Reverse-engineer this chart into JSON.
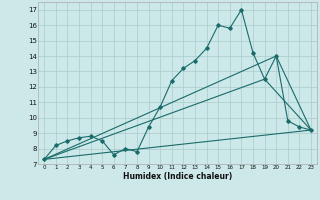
{
  "xlabel": "Humidex (Indice chaleur)",
  "background_color": "#cce8e8",
  "grid_color": "#aacccc",
  "line_color": "#1a6b6b",
  "xlim": [
    -0.5,
    23.5
  ],
  "ylim": [
    7,
    17.5
  ],
  "xticks": [
    0,
    1,
    2,
    3,
    4,
    5,
    6,
    7,
    8,
    9,
    10,
    11,
    12,
    13,
    14,
    15,
    16,
    17,
    18,
    19,
    20,
    21,
    22,
    23
  ],
  "yticks": [
    7,
    8,
    9,
    10,
    11,
    12,
    13,
    14,
    15,
    16,
    17
  ],
  "series1_y": [
    7.3,
    8.2,
    8.5,
    8.7,
    8.8,
    8.5,
    7.6,
    8.0,
    7.8,
    9.4,
    10.7,
    12.4,
    13.2,
    13.7,
    14.5,
    16.0,
    15.8,
    17.0,
    14.2,
    12.5,
    14.0,
    9.8,
    9.4,
    9.2
  ],
  "series2_x": [
    0,
    23
  ],
  "series2_y": [
    7.3,
    9.2
  ],
  "series3_x": [
    0,
    19,
    23
  ],
  "series3_y": [
    7.3,
    12.5,
    9.2
  ],
  "series4_x": [
    0,
    20,
    23
  ],
  "series4_y": [
    7.3,
    14.0,
    9.2
  ]
}
